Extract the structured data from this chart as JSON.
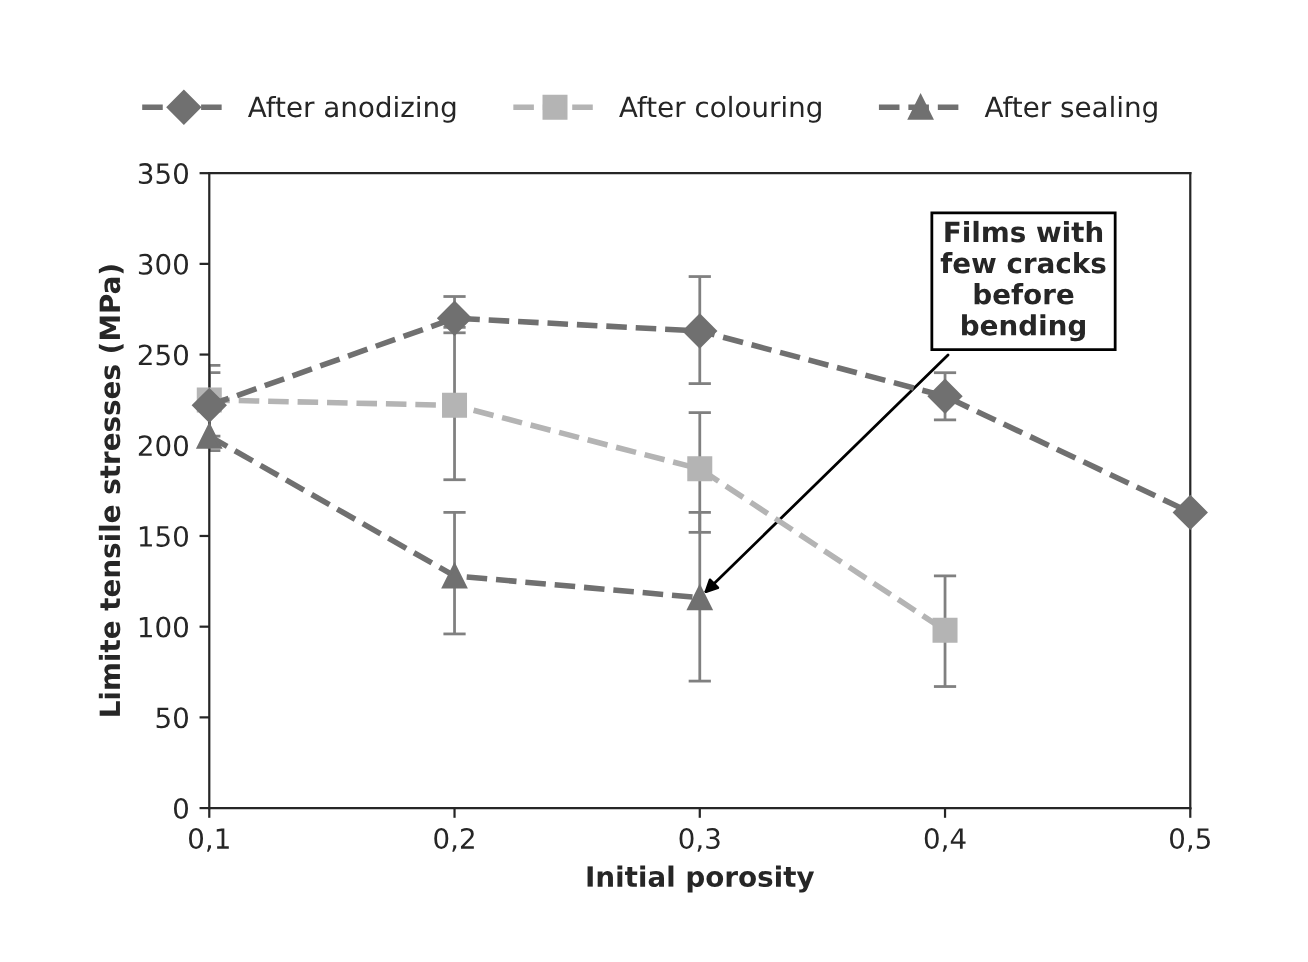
{
  "chart_data": {
    "type": "line",
    "xlabel": "Initial porosity",
    "ylabel": "Limite tensile stresses (MPa)",
    "x": [
      0.1,
      0.2,
      0.3,
      0.4,
      0.5
    ],
    "series": [
      {
        "name": "After anodizing",
        "color": "#707070",
        "marker": "diamond",
        "values": [
          222,
          270,
          263,
          227,
          163
        ],
        "errors": [
          [
            205,
            240
          ],
          [
            262,
            282
          ],
          [
            234,
            293
          ],
          [
            214,
            240
          ],
          null
        ]
      },
      {
        "name": "After colouring",
        "color": "#b4b4b4",
        "marker": "square",
        "values": [
          225,
          222,
          187,
          98,
          null
        ],
        "errors": [
          [
            200,
            244
          ],
          [
            181,
            265
          ],
          [
            152,
            218
          ],
          [
            67,
            128
          ],
          null
        ]
      },
      {
        "name": "After sealing",
        "color": "#707070",
        "marker": "triangle",
        "values": [
          205,
          128,
          116,
          null,
          null
        ],
        "errors": [
          [
            197,
            230
          ],
          [
            96,
            163
          ],
          [
            70,
            163
          ],
          null,
          null
        ]
      }
    ],
    "xlim": [
      0.1,
      0.5
    ],
    "ylim": [
      0,
      350
    ],
    "xticks": [
      {
        "value": 0.1,
        "label": "0,1"
      },
      {
        "value": 0.2,
        "label": "0,2"
      },
      {
        "value": 0.3,
        "label": "0,3"
      },
      {
        "value": 0.4,
        "label": "0,4"
      },
      {
        "value": 0.5,
        "label": "0,5"
      }
    ],
    "yticks": [
      0,
      50,
      100,
      150,
      200,
      250,
      300,
      350
    ],
    "line_style": "dashed",
    "grid": false,
    "legend": "top",
    "annotations": [
      {
        "text": "Films with\nfew cracks\nbefore\nbending",
        "x": 0.3,
        "y": 116
      }
    ]
  }
}
